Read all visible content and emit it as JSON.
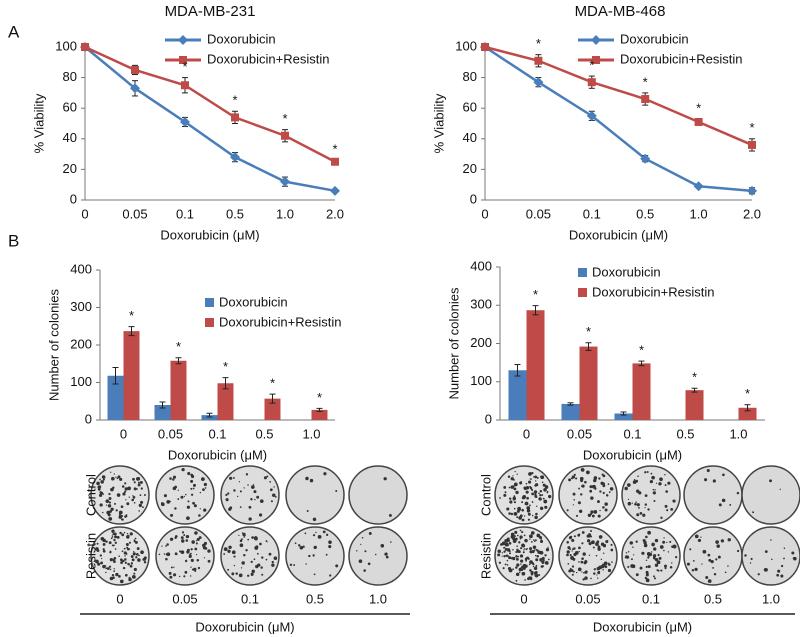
{
  "panels": [
    "A",
    "B"
  ],
  "chart_data": [
    {
      "type": "line",
      "title": "MDA-MB-231",
      "x_label": "Doxorubicin (μM)",
      "y_label": "% Viability",
      "categories": [
        "0",
        "0.05",
        "0.1",
        "0.5",
        "1.0",
        "2.0"
      ],
      "series": [
        {
          "name": "Doxorubicin",
          "color": "#4a7ebb",
          "marker": "diamond",
          "values": [
            100,
            73,
            51,
            28,
            12,
            6
          ],
          "errors": [
            1,
            5,
            3,
            3,
            3,
            1
          ]
        },
        {
          "name": "Doxorubicin+Resistin",
          "color": "#be4b48",
          "marker": "square",
          "values": [
            100,
            85,
            75,
            54,
            42,
            25
          ],
          "errors": [
            1,
            3,
            5,
            4,
            4,
            1
          ],
          "markers": [
            null,
            null,
            "*",
            "*",
            "*",
            "*"
          ]
        }
      ],
      "ylim": [
        0,
        100
      ],
      "yticks": [
        0,
        20,
        40,
        60,
        80,
        100
      ]
    },
    {
      "type": "line",
      "title": "MDA-MB-468",
      "x_label": "Doxorubicin (μM)",
      "y_label": "% Viability",
      "categories": [
        "0",
        "0.05",
        "0.1",
        "0.5",
        "1.0",
        "2.0"
      ],
      "series": [
        {
          "name": "Doxorubicin",
          "color": "#4a7ebb",
          "marker": "diamond",
          "values": [
            100,
            77,
            55,
            27,
            9,
            6
          ],
          "errors": [
            1,
            3,
            3,
            2,
            1,
            2
          ]
        },
        {
          "name": "Doxorubicin+Resistin",
          "color": "#be4b48",
          "marker": "square",
          "values": [
            100,
            91,
            77,
            66,
            51,
            36
          ],
          "errors": [
            1,
            4,
            4,
            4,
            2,
            4
          ],
          "markers": [
            null,
            "*",
            "*",
            "*",
            "*",
            "*"
          ]
        }
      ],
      "ylim": [
        0,
        100
      ],
      "yticks": [
        0,
        20,
        40,
        60,
        80,
        100
      ]
    },
    {
      "type": "bar",
      "x_label": "Doxorubicin (μM)",
      "y_label": "Number of colonies",
      "categories": [
        "0",
        "0.05",
        "0.1",
        "0.5",
        "1.0"
      ],
      "series": [
        {
          "name": "Doxorubicin",
          "color": "#4a7ebb",
          "values": [
            118,
            40,
            13,
            0,
            0
          ],
          "errors": [
            22,
            8,
            5,
            0,
            0
          ]
        },
        {
          "name": "Doxorubicin+Resistin",
          "color": "#be4b48",
          "values": [
            237,
            158,
            98,
            57,
            27
          ],
          "errors": [
            12,
            8,
            15,
            12,
            4
          ],
          "markers": [
            "*",
            "*",
            "*",
            "*",
            "*"
          ]
        }
      ],
      "ylim": [
        0,
        400
      ],
      "yticks": [
        0,
        100,
        200,
        300,
        400
      ]
    },
    {
      "type": "bar",
      "x_label": "Doxorubicin (μM)",
      "y_label": "Number of colonies",
      "categories": [
        "0",
        "0.05",
        "0.1",
        "0.5",
        "1.0"
      ],
      "series": [
        {
          "name": "Doxorubicin",
          "color": "#4a7ebb",
          "values": [
            130,
            42,
            17,
            0,
            0
          ],
          "errors": [
            15,
            3,
            4,
            0,
            0
          ]
        },
        {
          "name": "Doxorubicin+Resistin",
          "color": "#be4b48",
          "values": [
            287,
            192,
            148,
            78,
            32
          ],
          "errors": [
            12,
            10,
            6,
            5,
            8
          ],
          "markers": [
            "*",
            "*",
            "*",
            "*",
            "*"
          ]
        }
      ],
      "ylim": [
        0,
        400
      ],
      "yticks": [
        0,
        100,
        200,
        300,
        400
      ]
    }
  ],
  "plates": [
    {
      "rows": [
        "Control",
        "Resistin"
      ],
      "labels": [
        "0",
        "0.05",
        "0.1",
        "0.5",
        "1.0"
      ],
      "axis_label": "Doxorubicin (μM)"
    },
    {
      "rows": [
        "Control",
        "Resistin"
      ],
      "labels": [
        "0",
        "0.05",
        "0.1",
        "0.5",
        "1.0"
      ],
      "axis_label": "Doxorubicin (μM)"
    }
  ]
}
